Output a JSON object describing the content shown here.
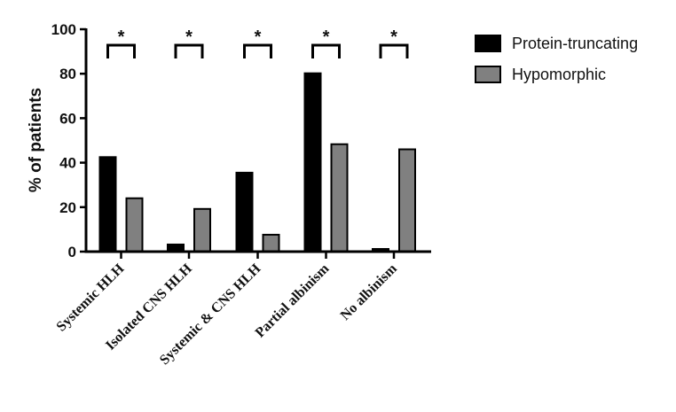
{
  "chart_data": {
    "type": "bar",
    "categories": [
      "Systemic HLH",
      "Isolated CNS HLH",
      "Systemic & CNS HLH",
      "Partial albinism",
      "No albinism"
    ],
    "series": [
      {
        "name": "Protein-truncating",
        "color": "#000000",
        "values": [
          42.5,
          3.2,
          35.5,
          80.2,
          1.2
        ]
      },
      {
        "name": "Hypomorphic",
        "color": "#808080",
        "values": [
          24.0,
          19.2,
          7.6,
          48.3,
          46.0
        ]
      }
    ],
    "ylabel": "% of patients",
    "xlabel": "",
    "ylim": [
      0,
      100
    ],
    "yticks": [
      0,
      20,
      40,
      60,
      80,
      100
    ],
    "significance": [
      "*",
      "*",
      "*",
      "*",
      "*"
    ],
    "legend_position": "top-right",
    "grid": false
  }
}
